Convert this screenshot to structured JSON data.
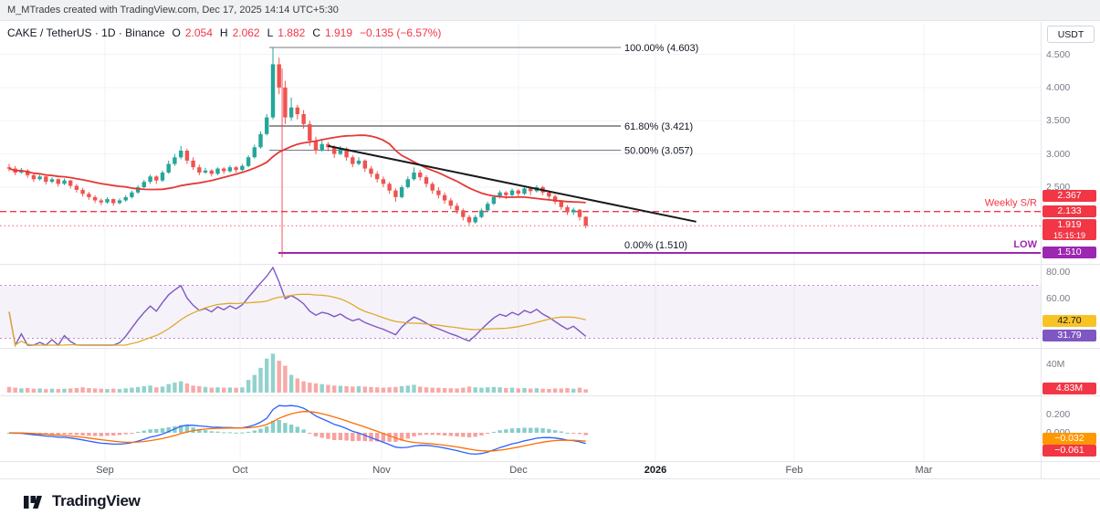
{
  "topbar": {
    "attribution": "M_MTrades created with TradingView.com, Dec 17, 2025 14:14 UTC+5:30"
  },
  "header": {
    "symbol_line": "CAKE / TetherUS · 1D · Binance",
    "ohlc": {
      "o_label": "O",
      "o": "2.054",
      "h_label": "H",
      "h": "2.062",
      "l_label": "L",
      "l": "1.882",
      "c_label": "C",
      "c": "1.919",
      "change": "−0.135 (−6.57%)"
    }
  },
  "axis": {
    "currency_button": "USDT",
    "price_ticks": [
      "4.500",
      "4.000",
      "3.500",
      "3.000",
      "2.500"
    ],
    "badges": {
      "ma": {
        "label": "2.367",
        "value": 2.367,
        "color": "#f23645"
      },
      "weekly_sr": {
        "label": "2.133",
        "value": 2.133,
        "color": "#f23645"
      },
      "last_price": {
        "label": "1.919",
        "countdown": "15:15:19",
        "value": 1.919,
        "color": "#f23645"
      },
      "fib_low": {
        "label": "1.510",
        "value": 1.51,
        "color": "#9c27b0"
      }
    },
    "rsi_ticks": [
      "80.00",
      "60.00"
    ],
    "rsi_badges": {
      "ma": {
        "label": "42.70",
        "value": 42.7,
        "color": "#f7c325",
        "dark_text": true
      },
      "rsi": {
        "label": "31.79",
        "value": 31.79,
        "color": "#7e57c2",
        "dark_text": false
      }
    },
    "volume_tick": "40M",
    "volume_badge": {
      "label": "4.83M",
      "value": 4.83,
      "color": "#f23645"
    },
    "macd_ticks": [
      "0.200",
      "0.000"
    ],
    "macd_badges": [
      {
        "label": "−0.032",
        "color": "#ff9800"
      },
      {
        "label": "−0.061",
        "color": "#f23645"
      }
    ]
  },
  "annotations": {
    "weekly_sr_label": "Weekly S/R",
    "low_label": "LOW",
    "fib_levels": [
      {
        "label": "100.00% (4.603)",
        "pct": 100.0,
        "price": 4.603
      },
      {
        "label": "61.80% (3.421)",
        "pct": 61.8,
        "price": 3.421
      },
      {
        "label": "50.00% (3.057)",
        "pct": 50.0,
        "price": 3.057
      },
      {
        "label": "0.00% (1.510)",
        "pct": 0.0,
        "price": 1.51
      }
    ]
  },
  "time_axis": {
    "labels": [
      "Sep",
      "Oct",
      "Nov",
      "Dec",
      "2026",
      "Feb",
      "Mar"
    ],
    "highlight": "2026"
  },
  "footer": {
    "logo_text": "TradingView"
  },
  "colors": {
    "up": "#26a69a",
    "down": "#ef5350",
    "accent_red": "#f23645",
    "fib_purple": "#9c27b0",
    "ma_line": "#e53935",
    "trendline": "#1a1a1a",
    "rsi_line": "#7e57c2",
    "rsi_ma_line": "#e0aa2e",
    "macd_line": "#2962ff",
    "macd_signal": "#ff6d00",
    "grid": "#f0f3fa",
    "tick_text": "#787b86"
  },
  "chart_data": {
    "type": "candlestick",
    "symbol": "CAKE/USDT",
    "interval": "1D",
    "exchange": "Binance",
    "last_bar": {
      "open": 2.054,
      "high": 2.062,
      "low": 1.882,
      "close": 1.919,
      "change": -0.135,
      "change_pct": -6.57
    },
    "visible_price_range": [
      1.4,
      4.75
    ],
    "x_tick_labels": [
      "Sep",
      "Oct",
      "Nov",
      "Dec",
      "2026",
      "Feb",
      "Mar"
    ],
    "fib_high": 4.603,
    "fib_low": 1.51,
    "weekly_sr_price": 2.133,
    "indicator_values": {
      "rsi": 31.79,
      "rsi_ma": 42.7,
      "volume_m": 4.83,
      "macd_signal": -0.032,
      "macd": -0.061,
      "ma_price": 2.367
    },
    "candles": [
      [
        2.8,
        2.85,
        2.74,
        2.78
      ],
      [
        2.78,
        2.82,
        2.68,
        2.72
      ],
      [
        2.72,
        2.79,
        2.7,
        2.75
      ],
      [
        2.75,
        2.77,
        2.64,
        2.68
      ],
      [
        2.68,
        2.71,
        2.58,
        2.62
      ],
      [
        2.62,
        2.69,
        2.6,
        2.66
      ],
      [
        2.66,
        2.67,
        2.54,
        2.58
      ],
      [
        2.58,
        2.65,
        2.56,
        2.62
      ],
      [
        2.62,
        2.63,
        2.51,
        2.55
      ],
      [
        2.55,
        2.63,
        2.53,
        2.6
      ],
      [
        2.6,
        2.61,
        2.48,
        2.52
      ],
      [
        2.52,
        2.55,
        2.42,
        2.46
      ],
      [
        2.46,
        2.49,
        2.36,
        2.4
      ],
      [
        2.4,
        2.43,
        2.31,
        2.35
      ],
      [
        2.35,
        2.38,
        2.26,
        2.3
      ],
      [
        2.3,
        2.33,
        2.23,
        2.27
      ],
      [
        2.27,
        2.35,
        2.25,
        2.32
      ],
      [
        2.32,
        2.33,
        2.22,
        2.26
      ],
      [
        2.26,
        2.33,
        2.24,
        2.3
      ],
      [
        2.3,
        2.38,
        2.28,
        2.35
      ],
      [
        2.35,
        2.45,
        2.33,
        2.42
      ],
      [
        2.42,
        2.53,
        2.4,
        2.5
      ],
      [
        2.5,
        2.61,
        2.48,
        2.58
      ],
      [
        2.58,
        2.69,
        2.55,
        2.66
      ],
      [
        2.66,
        2.68,
        2.55,
        2.6
      ],
      [
        2.6,
        2.75,
        2.58,
        2.72
      ],
      [
        2.72,
        2.9,
        2.7,
        2.85
      ],
      [
        2.85,
        3.0,
        2.82,
        2.95
      ],
      [
        2.95,
        3.12,
        2.92,
        3.05
      ],
      [
        3.05,
        3.08,
        2.85,
        2.9
      ],
      [
        2.9,
        2.95,
        2.76,
        2.8
      ],
      [
        2.8,
        2.84,
        2.68,
        2.72
      ],
      [
        2.72,
        2.79,
        2.7,
        2.75
      ],
      [
        2.75,
        2.77,
        2.66,
        2.7
      ],
      [
        2.7,
        2.8,
        2.68,
        2.78
      ],
      [
        2.78,
        2.8,
        2.7,
        2.74
      ],
      [
        2.74,
        2.83,
        2.72,
        2.8
      ],
      [
        2.8,
        2.82,
        2.72,
        2.76
      ],
      [
        2.76,
        2.85,
        2.74,
        2.82
      ],
      [
        2.82,
        2.98,
        2.8,
        2.95
      ],
      [
        2.95,
        3.14,
        2.93,
        3.1
      ],
      [
        3.1,
        3.34,
        3.08,
        3.3
      ],
      [
        3.3,
        3.6,
        3.28,
        3.55
      ],
      [
        3.55,
        4.603,
        3.52,
        4.35
      ],
      [
        4.35,
        4.45,
        3.9,
        4.0
      ],
      [
        4.0,
        4.1,
        3.45,
        3.55
      ],
      [
        3.55,
        3.85,
        3.5,
        3.7
      ],
      [
        3.7,
        3.74,
        3.52,
        3.6
      ],
      [
        3.6,
        3.66,
        3.38,
        3.45
      ],
      [
        3.45,
        3.5,
        3.12,
        3.2
      ],
      [
        3.2,
        3.26,
        3.0,
        3.05
      ],
      [
        3.05,
        3.22,
        3.03,
        3.15
      ],
      [
        3.15,
        3.18,
        3.04,
        3.1
      ],
      [
        3.1,
        3.13,
        2.94,
        3.0
      ],
      [
        3.0,
        3.12,
        2.98,
        3.08
      ],
      [
        3.08,
        3.1,
        2.9,
        2.95
      ],
      [
        2.95,
        2.98,
        2.8,
        2.85
      ],
      [
        2.85,
        2.95,
        2.83,
        2.9
      ],
      [
        2.9,
        2.92,
        2.73,
        2.78
      ],
      [
        2.78,
        2.82,
        2.65,
        2.7
      ],
      [
        2.7,
        2.74,
        2.57,
        2.62
      ],
      [
        2.62,
        2.66,
        2.5,
        2.55
      ],
      [
        2.55,
        2.58,
        2.4,
        2.45
      ],
      [
        2.45,
        2.48,
        2.28,
        2.35
      ],
      [
        2.35,
        2.53,
        2.33,
        2.5
      ],
      [
        2.5,
        2.66,
        2.48,
        2.62
      ],
      [
        2.62,
        2.8,
        2.6,
        2.72
      ],
      [
        2.72,
        2.76,
        2.6,
        2.65
      ],
      [
        2.65,
        2.68,
        2.5,
        2.55
      ],
      [
        2.55,
        2.58,
        2.4,
        2.45
      ],
      [
        2.45,
        2.5,
        2.33,
        2.38
      ],
      [
        2.38,
        2.42,
        2.25,
        2.3
      ],
      [
        2.3,
        2.34,
        2.17,
        2.22
      ],
      [
        2.22,
        2.26,
        2.1,
        2.15
      ],
      [
        2.15,
        2.18,
        2.0,
        2.05
      ],
      [
        2.05,
        2.08,
        1.93,
        1.97
      ],
      [
        1.97,
        2.08,
        1.95,
        2.05
      ],
      [
        2.05,
        2.18,
        2.03,
        2.15
      ],
      [
        2.15,
        2.28,
        2.13,
        2.25
      ],
      [
        2.25,
        2.38,
        2.23,
        2.35
      ],
      [
        2.35,
        2.45,
        2.33,
        2.42
      ],
      [
        2.42,
        2.44,
        2.32,
        2.38
      ],
      [
        2.38,
        2.48,
        2.36,
        2.45
      ],
      [
        2.45,
        2.47,
        2.35,
        2.4
      ],
      [
        2.4,
        2.51,
        2.38,
        2.48
      ],
      [
        2.48,
        2.5,
        2.38,
        2.44
      ],
      [
        2.44,
        2.53,
        2.42,
        2.5
      ],
      [
        2.5,
        2.52,
        2.38,
        2.42
      ],
      [
        2.42,
        2.45,
        2.32,
        2.36
      ],
      [
        2.36,
        2.39,
        2.24,
        2.28
      ],
      [
        2.28,
        2.31,
        2.16,
        2.2
      ],
      [
        2.2,
        2.23,
        2.08,
        2.12
      ],
      [
        2.12,
        2.19,
        2.08,
        2.16
      ],
      [
        2.16,
        2.17,
        2.0,
        2.05
      ],
      [
        2.054,
        2.062,
        1.882,
        1.919
      ]
    ],
    "volumes_m": [
      8,
      7,
      6,
      6.5,
      5.5,
      6,
      5,
      5.5,
      5,
      5.5,
      6,
      6.5,
      7.5,
      6.5,
      6,
      5.5,
      5,
      5.5,
      5,
      6,
      7,
      8,
      9,
      10,
      7.5,
      8.5,
      12,
      14,
      16,
      13,
      10,
      9,
      8,
      7,
      7.5,
      7,
      7.2,
      6.8,
      7.4,
      18,
      25,
      35,
      48,
      55,
      45,
      38,
      25,
      20,
      16,
      14,
      13,
      12,
      11,
      10,
      9.5,
      9,
      8.5,
      9,
      8.5,
      8,
      7.5,
      7,
      7.5,
      8,
      9,
      10,
      11,
      8.5,
      7.5,
      7,
      6.8,
      6.5,
      6.2,
      6,
      7,
      8.5,
      7.5,
      7,
      7.5,
      8,
      7.5,
      6.5,
      7,
      6,
      6.5,
      5.8,
      6.2,
      5.5,
      5.2,
      5.8,
      6,
      6.5,
      5.5,
      6.8,
      4.83
    ],
    "drawn_annotations": {
      "trendline": {
        "from_index": 52,
        "from_price": 3.12,
        "to_index": 112,
        "to_price": 1.98
      },
      "vertical_line": {
        "index": 44.5,
        "from_price": 4.287,
        "to_price": 1.445
      }
    }
  }
}
